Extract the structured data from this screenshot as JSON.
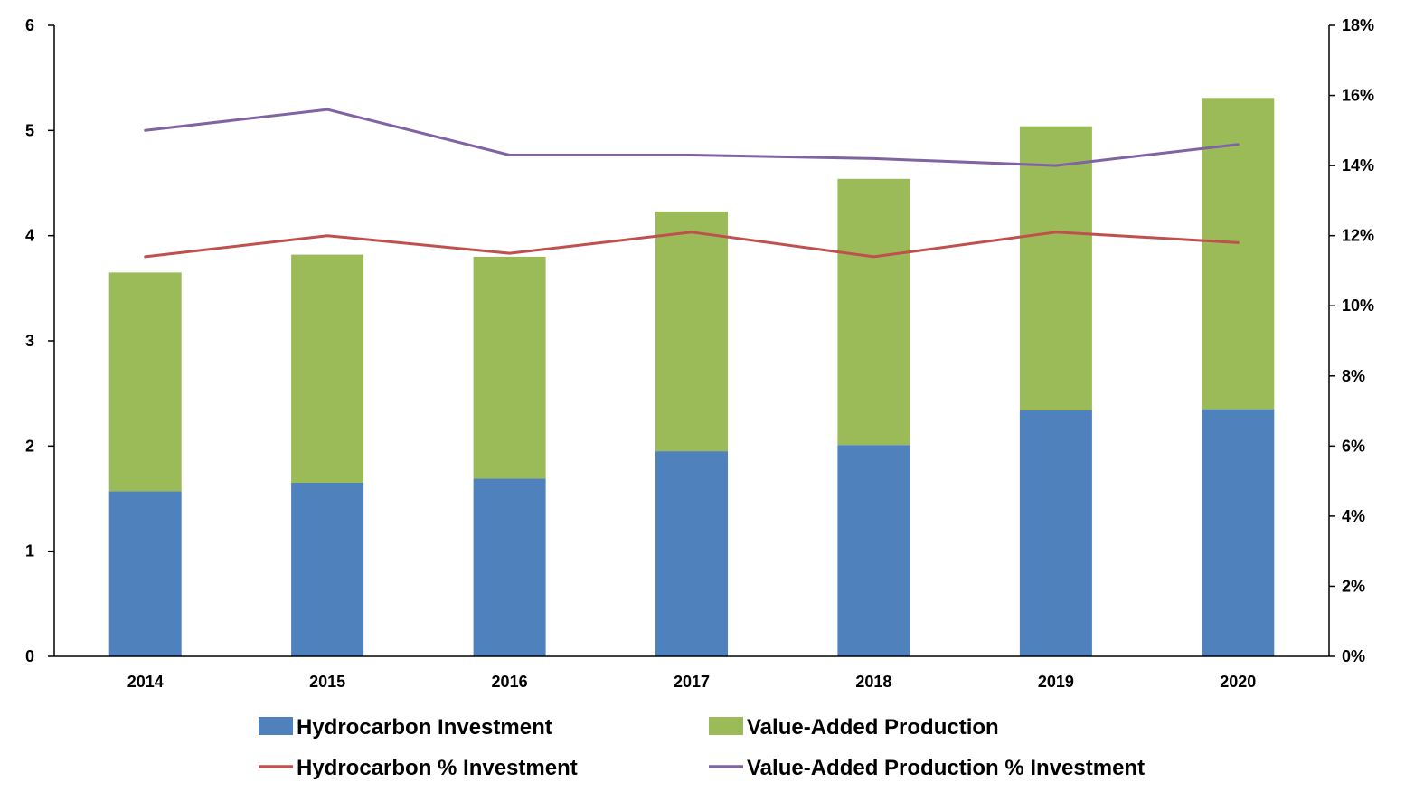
{
  "chart_data": {
    "type": "bar",
    "stacked": true,
    "title": "",
    "xlabel": "",
    "ylabel": "",
    "y2label": "",
    "categories": [
      "2014",
      "2015",
      "2016",
      "2017",
      "2018",
      "2019",
      "2020"
    ],
    "ylim": [
      0,
      6
    ],
    "y_ticks": [
      "0",
      "1",
      "2",
      "3",
      "4",
      "5",
      "6"
    ],
    "y2lim": [
      0,
      18
    ],
    "y2_ticks": [
      "0%",
      "2%",
      "4%",
      "6%",
      "8%",
      "10%",
      "12%",
      "14%",
      "16%",
      "18%"
    ],
    "grid": false,
    "legend_position": "bottom",
    "series": [
      {
        "name": "Hydrocarbon Investment",
        "type": "bar",
        "axis": "left",
        "color": "#4f81bd",
        "values": [
          1.57,
          1.65,
          1.69,
          1.95,
          2.01,
          2.34,
          2.35
        ]
      },
      {
        "name": "Value-Added Production",
        "type": "bar",
        "axis": "left",
        "color": "#9bbb59",
        "values": [
          2.08,
          2.17,
          2.11,
          2.28,
          2.53,
          2.7,
          2.96
        ]
      },
      {
        "name": "Hydrocarbon % Investment",
        "type": "line",
        "axis": "right",
        "color": "#c0504d",
        "values": [
          11.4,
          12.0,
          11.5,
          12.1,
          11.4,
          12.1,
          11.8
        ]
      },
      {
        "name": "Value-Added Production % Investment",
        "type": "line",
        "axis": "right",
        "color": "#8064a2",
        "values": [
          15.0,
          15.6,
          14.3,
          14.3,
          14.2,
          14.0,
          14.6
        ]
      }
    ]
  }
}
